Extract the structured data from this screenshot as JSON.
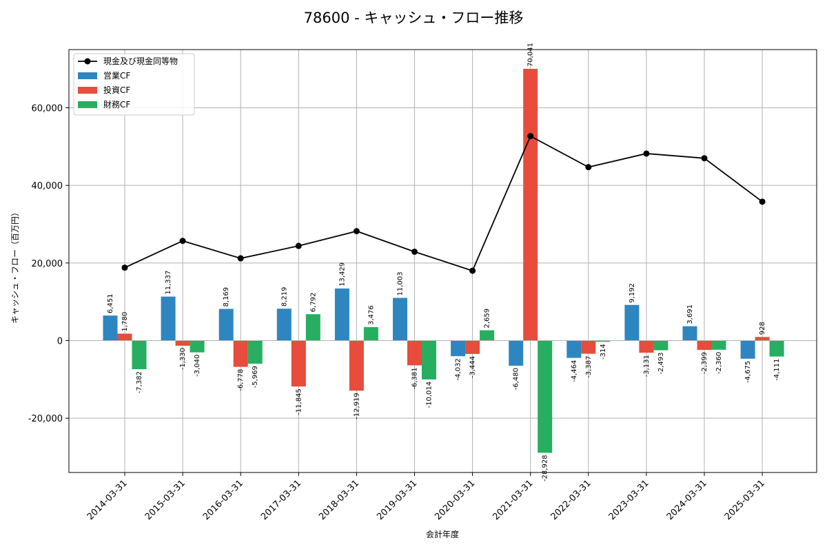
{
  "chart_data": {
    "type": "bar",
    "title": "78600 - キャッシュ・フロー推移",
    "xlabel": "会計年度",
    "ylabel": "キャッシュ・フロー（百万円）",
    "categories": [
      "2014-03-31",
      "2015-03-31",
      "2016-03-31",
      "2017-03-31",
      "2018-03-31",
      "2019-03-31",
      "2020-03-31",
      "2021-03-31",
      "2022-03-31",
      "2023-03-31",
      "2024-03-31",
      "2025-03-31"
    ],
    "ylim": [
      -34000,
      75000
    ],
    "yticks": [
      -20000,
      0,
      20000,
      40000,
      60000
    ],
    "ytick_labels": [
      "-20,000",
      "0",
      "20,000",
      "40,000",
      "60,000"
    ],
    "grid": true,
    "legend_position": "top-left",
    "series": [
      {
        "name": "営業CF",
        "kind": "bar",
        "color": "#2e86c1",
        "values": [
          6451,
          11337,
          8169,
          8219,
          13429,
          11003,
          -4032,
          -6480,
          -4464,
          9192,
          3691,
          -4675
        ],
        "labels": [
          "6,451",
          "11,337",
          "8,169",
          "8,219",
          "13,429",
          "11,003",
          "-4,032",
          "-6,480",
          "-4,464",
          "9,192",
          "3,691",
          "-4,675"
        ]
      },
      {
        "name": "投資CF",
        "kind": "bar",
        "color": "#e74c3c",
        "values": [
          1780,
          -1330,
          -6778,
          -11845,
          -12919,
          -6381,
          -3444,
          70041,
          -3387,
          -3131,
          -2399,
          928
        ],
        "labels": [
          "1,780",
          "-1,330",
          "-6,778",
          "-11,845",
          "-12,919",
          "-6,381",
          "-3,444",
          "70,041",
          "-3,387",
          "-3,131",
          "-2,399",
          "928"
        ]
      },
      {
        "name": "財務CF",
        "kind": "bar",
        "color": "#27ae60",
        "values": [
          -7382,
          -3040,
          -5969,
          6792,
          3476,
          -10014,
          2659,
          -28928,
          -314,
          -2493,
          -2360,
          -4111
        ],
        "labels": [
          "-7,382",
          "-3,040",
          "-5,969",
          "6,792",
          "3,476",
          "-10,014",
          "2,659",
          "-28,928",
          "-314",
          "-2,493",
          "-2,360",
          "-4,111"
        ]
      },
      {
        "name": "現金及び現金同等物",
        "kind": "line",
        "color": "#000000",
        "values": [
          18800,
          25700,
          21200,
          24400,
          28200,
          22900,
          18000,
          52700,
          44700,
          48200,
          47000,
          35800
        ]
      }
    ]
  }
}
